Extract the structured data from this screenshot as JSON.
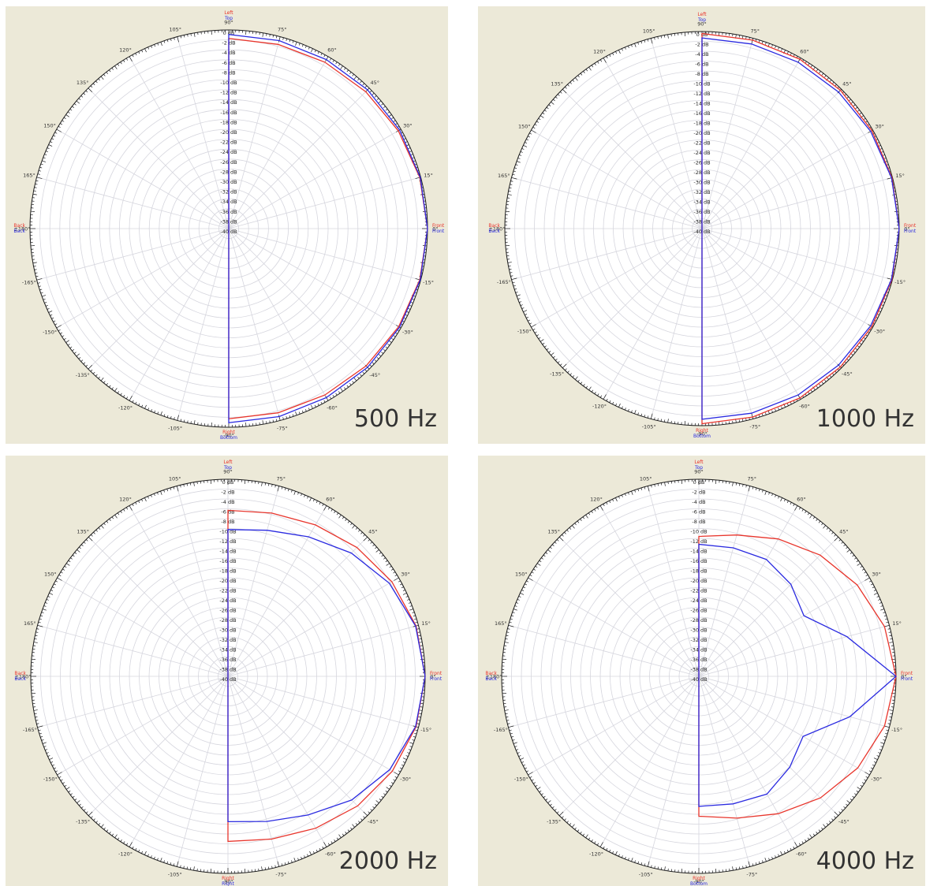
{
  "colors": {
    "background": "#ece9d8",
    "plot_face": "#ffffff",
    "grid": "#d6d6de",
    "horizontal": "#e8352c",
    "vertical": "#2a2ae0",
    "axis": "#1a1a1a"
  },
  "chart_data": [
    {
      "type": "line",
      "polar": true,
      "title": "500 Hz",
      "orientation_labels": {
        "top": [
          "Left",
          "Top"
        ],
        "bottom": [
          "Right",
          "Bottom"
        ],
        "left": [
          "Back",
          "Back"
        ],
        "right": [
          "Front",
          "Front"
        ]
      },
      "angle_labels": [
        "90°",
        "75°",
        "60°",
        "45°",
        "30°",
        "15°",
        "0°",
        "-15°",
        "-30°",
        "-45°",
        "-60°",
        "-75°",
        "-90°",
        "105°",
        "120°",
        "135°",
        "150°",
        "165°",
        "±180°",
        "-165°",
        "-150°",
        "-135°",
        "-120°",
        "-105°"
      ],
      "radial_labels": [
        "0 dB",
        "-2 dB",
        "-4 dB",
        "-6 dB",
        "-8 dB",
        "-10 dB",
        "-12 dB",
        "-14 dB",
        "-16 dB",
        "-18 dB",
        "-20 dB",
        "-22 dB",
        "-24 dB",
        "-26 dB",
        "-28 dB",
        "-30 dB",
        "-32 dB",
        "-34 dB",
        "-36 dB",
        "-38 dB",
        "-40 dB"
      ],
      "rlim": [
        -40,
        0
      ],
      "angles": [
        90,
        75,
        60,
        45,
        30,
        15,
        0,
        -15,
        -30,
        -45,
        -60,
        -75,
        -90
      ],
      "series": [
        {
          "name": "Left",
          "color_key": "horizontal",
          "values": [
            -1.7,
            -1.6,
            -1.3,
            -1.0,
            -0.6,
            -0.2,
            0.0,
            -0.2,
            -0.5,
            -0.9,
            -1.3,
            -1.6,
            -1.7
          ]
        },
        {
          "name": "Top",
          "color_key": "vertical",
          "values": [
            -0.9,
            -0.8,
            -0.7,
            -0.5,
            -0.3,
            -0.1,
            0.0,
            -0.1,
            -0.3,
            -0.5,
            -0.7,
            -0.8,
            -0.9
          ]
        }
      ]
    },
    {
      "type": "line",
      "polar": true,
      "title": "1000 Hz",
      "orientation_labels": {
        "top": [
          "Left",
          "Top"
        ],
        "bottom": [
          "Right",
          "Bottom"
        ],
        "left": [
          "Back",
          "Back"
        ],
        "right": [
          "Front",
          "Front"
        ]
      },
      "angle_labels": [
        "90°",
        "75°",
        "60°",
        "45°",
        "30°",
        "15°",
        "0°",
        "-15°",
        "-30°",
        "-45°",
        "-60°",
        "-75°",
        "-90°",
        "105°",
        "120°",
        "135°",
        "150°",
        "165°",
        "±180°",
        "-165°",
        "-150°",
        "-135°",
        "-120°",
        "-105°"
      ],
      "radial_labels": [
        "0 dB",
        "-2 dB",
        "-4 dB",
        "-6 dB",
        "-8 dB",
        "-10 dB",
        "-12 dB",
        "-14 dB",
        "-16 dB",
        "-18 dB",
        "-20 dB",
        "-22 dB",
        "-24 dB",
        "-26 dB",
        "-28 dB",
        "-30 dB",
        "-32 dB",
        "-34 dB",
        "-36 dB",
        "-38 dB",
        "-40 dB"
      ],
      "rlim": [
        -40,
        0
      ],
      "angles": [
        90,
        75,
        60,
        45,
        30,
        15,
        0,
        -15,
        -30,
        -45,
        -60,
        -75,
        -90
      ],
      "series": [
        {
          "name": "Left",
          "color_key": "horizontal",
          "values": [
            -0.4,
            -0.4,
            -0.3,
            -0.3,
            -0.2,
            -0.1,
            0.0,
            -0.1,
            -0.2,
            -0.3,
            -0.3,
            -0.4,
            -0.4
          ]
        },
        {
          "name": "Top",
          "color_key": "vertical",
          "values": [
            -1.3,
            -1.2,
            -1.0,
            -0.8,
            -0.5,
            -0.2,
            0.0,
            -0.2,
            -0.5,
            -0.8,
            -1.0,
            -1.2,
            -1.3
          ]
        }
      ]
    },
    {
      "type": "line",
      "polar": true,
      "title": "2000 Hz",
      "orientation_labels": {
        "top": [
          "Left",
          "Top"
        ],
        "bottom": [
          "Right",
          "Right"
        ],
        "left": [
          "Back",
          "Back"
        ],
        "right": [
          "Front",
          "Front"
        ]
      },
      "angle_labels": [
        "90°",
        "75°",
        "60°",
        "45°",
        "30°",
        "15°",
        "0°",
        "-15°",
        "-30°",
        "-45°",
        "-60°",
        "-75°",
        "-90°",
        "105°",
        "120°",
        "135°",
        "150°",
        "165°",
        "±180°",
        "-165°",
        "-150°",
        "-135°",
        "-120°",
        "-105°"
      ],
      "radial_labels": [
        "0 dB",
        "-2 dB",
        "-4 dB",
        "-6 dB",
        "-8 dB",
        "-10 dB",
        "-12 dB",
        "-14 dB",
        "-16 dB",
        "-18 dB",
        "-20 dB",
        "-22 dB",
        "-24 dB",
        "-26 dB",
        "-28 dB",
        "-30 dB",
        "-32 dB",
        "-34 dB",
        "-36 dB",
        "-38 dB",
        "-40 dB"
      ],
      "rlim": [
        -40,
        0
      ],
      "angles": [
        90,
        75,
        60,
        45,
        30,
        15,
        0,
        -15,
        -30,
        -45,
        -60,
        -75,
        -90
      ],
      "series": [
        {
          "name": "Left",
          "color_key": "horizontal",
          "values": [
            -6.3,
            -5.7,
            -4.5,
            -3.0,
            -1.6,
            -0.5,
            0.0,
            -0.5,
            -1.5,
            -2.8,
            -4.4,
            -5.8,
            -6.5
          ]
        },
        {
          "name": "Top",
          "color_key": "vertical",
          "values": [
            -10.2,
            -9.3,
            -7.3,
            -4.6,
            -2.2,
            -0.6,
            0.0,
            -0.6,
            -2.1,
            -4.5,
            -7.5,
            -9.5,
            -10.5
          ]
        }
      ]
    },
    {
      "type": "line",
      "polar": true,
      "title": "4000 Hz",
      "orientation_labels": {
        "top": [
          "Left",
          "Top"
        ],
        "bottom": [
          "Right",
          "Bottom"
        ],
        "left": [
          "Back",
          "Back"
        ],
        "right": [
          "Front",
          "Front"
        ]
      },
      "angle_labels": [
        "90°",
        "75°",
        "60°",
        "45°",
        "30°",
        "15°",
        "0°",
        "-15°",
        "-30°",
        "-45°",
        "-60°",
        "-75°",
        "-90°",
        "105°",
        "120°",
        "135°",
        "150°",
        "165°",
        "±180°",
        "-165°",
        "-150°",
        "-135°",
        "-120°",
        "-105°"
      ],
      "radial_labels": [
        "0 dB",
        "-2 dB",
        "-4 dB",
        "-6 dB",
        "-8 dB",
        "-10 dB",
        "-12 dB",
        "-14 dB",
        "-16 dB",
        "-18 dB",
        "-20 dB",
        "-22 dB",
        "-24 dB",
        "-26 dB",
        "-28 dB",
        "-30 dB",
        "-32 dB",
        "-34 dB",
        "-36 dB",
        "-38 dB",
        "-40 dB"
      ],
      "rlim": [
        -40,
        0
      ],
      "angles": [
        90,
        75,
        60,
        45,
        30,
        15,
        0,
        -15,
        -30,
        -45,
        -60,
        -75,
        -90
      ],
      "series": [
        {
          "name": "Left",
          "color_key": "horizontal",
          "values": [
            -11.6,
            -10.3,
            -7.8,
            -5.2,
            -2.9,
            -1.0,
            0.0,
            -1.0,
            -2.8,
            -5.1,
            -7.8,
            -10.2,
            -11.6
          ]
        },
        {
          "name": "Top",
          "color_key": "vertical",
          "values": [
            -13.2,
            -13.0,
            -12.6,
            -13.6,
            -15.4,
            -8.9,
            0.0,
            -8.3,
            -15.6,
            -13.9,
            -12.4,
            -13.2,
            -13.6
          ]
        }
      ]
    }
  ]
}
